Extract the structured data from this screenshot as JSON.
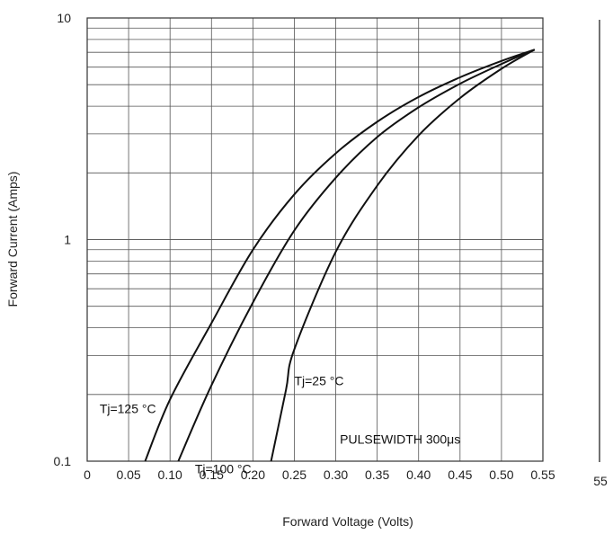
{
  "chart_data": {
    "type": "line",
    "title": "",
    "xlabel": "Forward Voltage (Volts)",
    "ylabel": "Forward Current (Amps)",
    "xlim": [
      0,
      0.55
    ],
    "ylim": [
      0.1,
      10
    ],
    "y_scale": "log",
    "grid": true,
    "x_ticks": [
      "0",
      "0.05",
      "0.10",
      "0.15",
      "0.20",
      "0.25",
      "0.30",
      "0.35",
      "0.40",
      "0.45",
      "0.50",
      "0.55"
    ],
    "y_ticks": [
      "0.1",
      "1",
      "10"
    ],
    "series": [
      {
        "name": "Tj=125 °C",
        "color": "#111111",
        "points": [
          [
            0.07,
            0.1
          ],
          [
            0.1,
            0.19
          ],
          [
            0.15,
            0.42
          ],
          [
            0.2,
            0.9
          ],
          [
            0.25,
            1.6
          ],
          [
            0.3,
            2.45
          ],
          [
            0.35,
            3.4
          ],
          [
            0.4,
            4.4
          ],
          [
            0.45,
            5.4
          ],
          [
            0.5,
            6.4
          ],
          [
            0.54,
            7.2
          ]
        ]
      },
      {
        "name": "Tj=100 °C",
        "color": "#111111",
        "points": [
          [
            0.11,
            0.1
          ],
          [
            0.15,
            0.22
          ],
          [
            0.2,
            0.52
          ],
          [
            0.25,
            1.1
          ],
          [
            0.3,
            1.9
          ],
          [
            0.35,
            2.9
          ],
          [
            0.4,
            3.95
          ],
          [
            0.45,
            5.05
          ],
          [
            0.5,
            6.2
          ],
          [
            0.54,
            7.2
          ]
        ]
      },
      {
        "name": "Tj=25 °C",
        "color": "#111111",
        "points": [
          [
            0.222,
            0.1
          ],
          [
            0.24,
            0.21
          ],
          [
            0.25,
            0.32
          ],
          [
            0.3,
            0.88
          ],
          [
            0.35,
            1.75
          ],
          [
            0.4,
            2.95
          ],
          [
            0.45,
            4.35
          ],
          [
            0.5,
            5.9
          ],
          [
            0.54,
            7.2
          ]
        ]
      }
    ],
    "annotations": [
      {
        "text": "Tj=125 °C",
        "x": 0.015,
        "y": 0.165
      },
      {
        "text": "Tj=100 °C",
        "x": 0.13,
        "y": 0.088
      },
      {
        "text": "Tj=25 °C",
        "x": 0.25,
        "y": 0.22
      },
      {
        "text": "PULSEWIDTH 300μs",
        "x": 0.305,
        "y": 0.12
      }
    ],
    "stray_text": "55"
  }
}
